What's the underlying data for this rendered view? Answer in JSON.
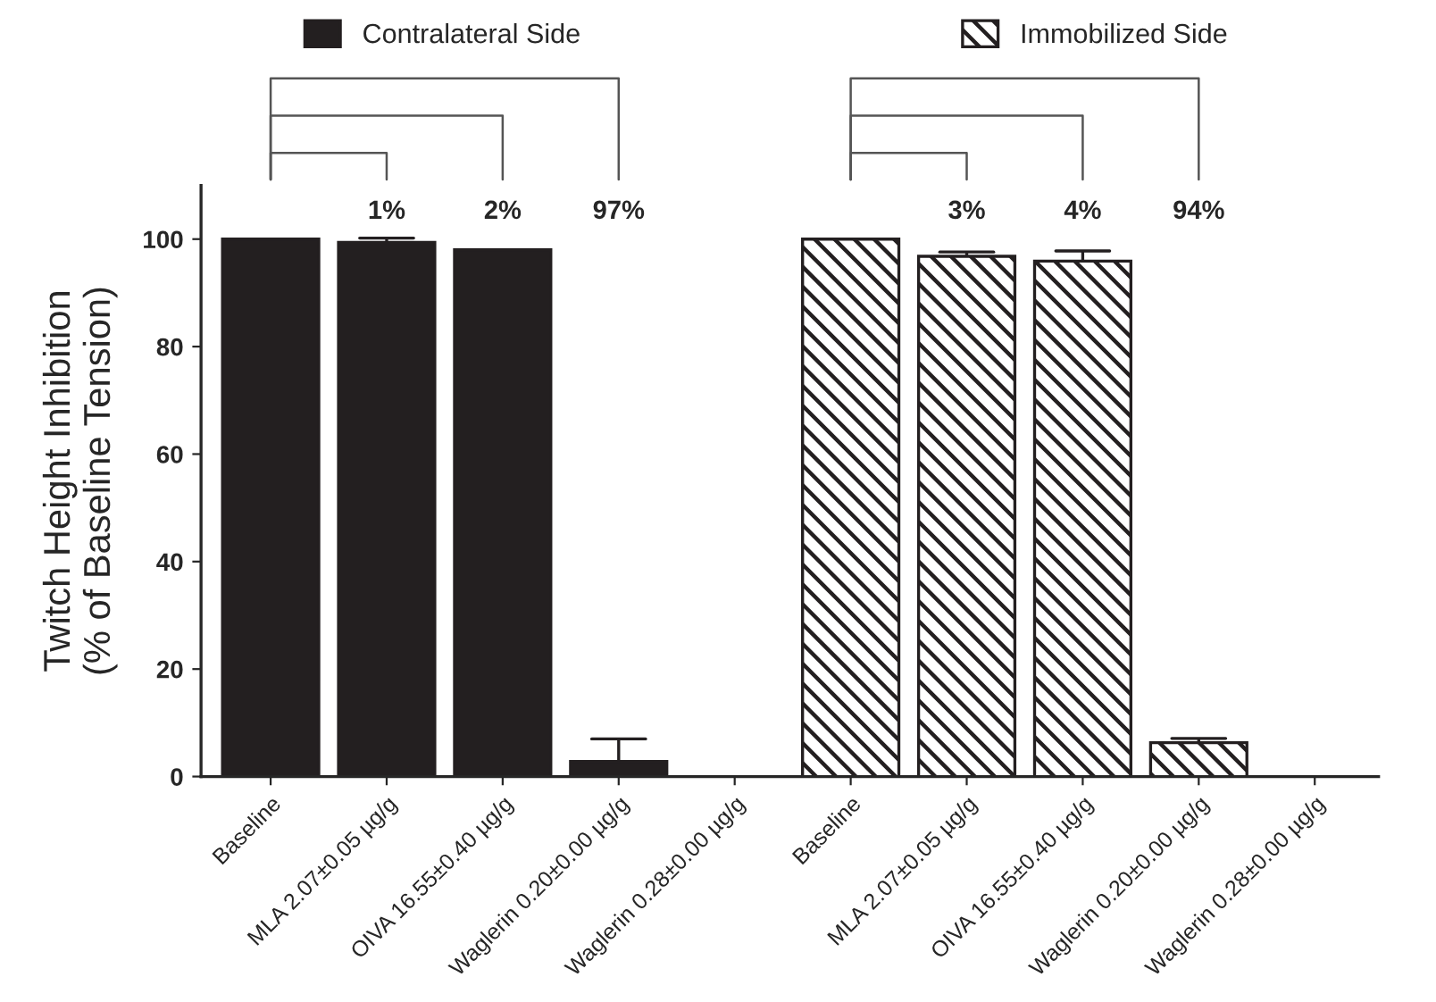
{
  "chart_data": {
    "type": "bar",
    "ylabel": "Twitch Height Inhibition\n(% of Baseline Tension)",
    "categories": [
      "Baseline",
      "MLA 2.07±0.05 µg/g",
      "OIVA 16.55±0.40 µg/g",
      "Waglerin 0.20±0.00 µg/g",
      "Waglerin 0.28±0.00 µg/g",
      "Baseline",
      "MLA 2.07±0.05 µg/g",
      "OIVA 16.55±0.40 µg/g",
      "Waglerin 0.20±0.00 µg/g",
      "Waglerin 0.28±0.00 µg/g"
    ],
    "series": [
      {
        "name": "Contralateral Side",
        "color": "#231f20",
        "values": [
          100,
          99.4,
          98,
          2.8,
          0,
          null,
          null,
          null,
          null,
          null
        ],
        "errors": [
          null,
          [
            99.4,
            100.2
          ],
          null,
          [
            2.8,
            7.0
          ],
          null,
          null,
          null,
          null,
          null,
          null
        ]
      },
      {
        "name": "Immobilized Side",
        "color": "#231f20",
        "values": [
          null,
          null,
          null,
          null,
          null,
          100,
          96.8,
          95.9,
          6.3,
          0
        ],
        "errors": [
          null,
          null,
          null,
          null,
          null,
          null,
          [
            96.8,
            97.6
          ],
          [
            95.9,
            97.8
          ],
          [
            6.3,
            7.1
          ],
          null
        ]
      }
    ],
    "annotations": [
      "1%",
      "2%",
      "97%",
      "3%",
      "4%",
      "94%"
    ],
    "ylim": [
      0,
      110
    ],
    "yticks": [
      0,
      20,
      40,
      60,
      80,
      100
    ],
    "grid": false,
    "legend": "top"
  }
}
